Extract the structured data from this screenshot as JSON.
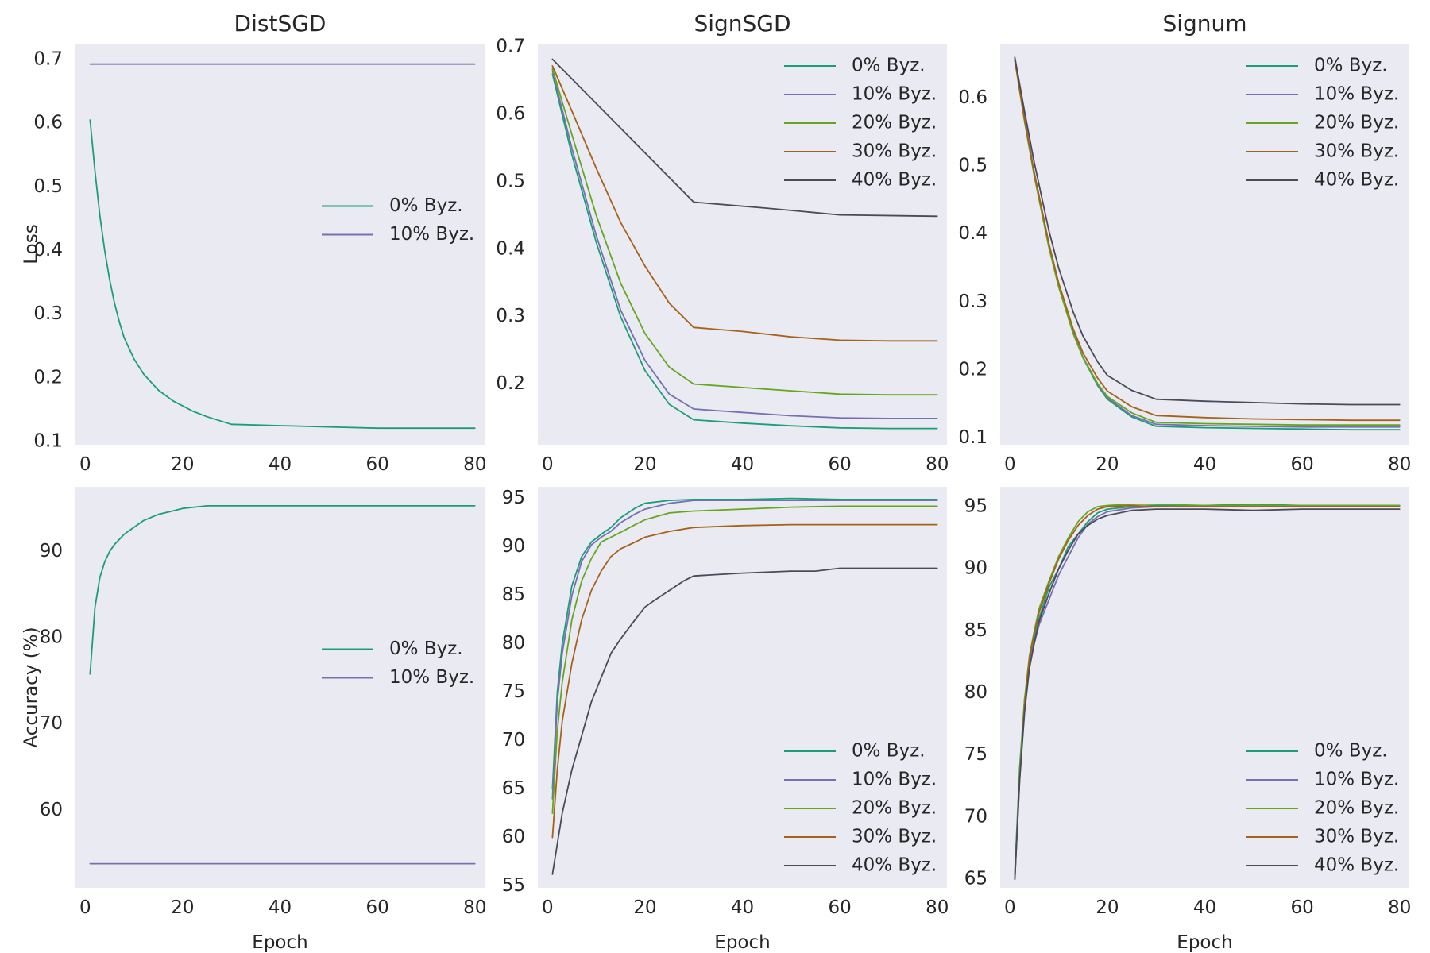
{
  "chart_data": [
    {
      "id": "distsgd-loss",
      "type": "line",
      "title": "DistSGD",
      "xlabel": "",
      "ylabel": "Loss",
      "xlim": [
        -2,
        82
      ],
      "ylim": [
        0.095,
        0.725
      ],
      "xticks": [
        0,
        20,
        40,
        60,
        80
      ],
      "yticks": [
        0.1,
        0.2,
        0.3,
        0.4,
        0.5,
        0.6,
        0.7
      ],
      "ytick_labels": [
        "0.1",
        "0.2",
        "0.3",
        "0.4",
        "0.5",
        "0.6",
        "0.7"
      ],
      "legend": "center-right",
      "series": [
        {
          "name": "0%  Byz.",
          "color": "#1b9e77",
          "x": [
            1,
            2,
            3,
            4,
            5,
            6,
            7,
            8,
            10,
            12,
            15,
            18,
            20,
            22,
            25,
            30,
            40,
            50,
            60,
            70,
            80
          ],
          "values": [
            0.605,
            0.525,
            0.455,
            0.4,
            0.355,
            0.318,
            0.288,
            0.263,
            0.23,
            0.206,
            0.181,
            0.164,
            0.156,
            0.148,
            0.139,
            0.127,
            0.125,
            0.123,
            0.121,
            0.121,
            0.121
          ]
        },
        {
          "name": "10%  Byz.",
          "color": "#7570b3",
          "x": [
            1,
            80
          ],
          "values": [
            0.693,
            0.693
          ]
        }
      ]
    },
    {
      "id": "signsgd-loss",
      "type": "line",
      "title": "SignSGD",
      "xlabel": "",
      "ylabel": "",
      "xlim": [
        -2,
        82
      ],
      "ylim": [
        0.11,
        0.705
      ],
      "xticks": [
        0,
        20,
        40,
        60,
        80
      ],
      "yticks": [
        0.2,
        0.3,
        0.4,
        0.5,
        0.6,
        0.7
      ],
      "ytick_labels": [
        "0.2",
        "0.3",
        "0.4",
        "0.5",
        "0.6",
        "0.7"
      ],
      "legend": "top-right",
      "series": [
        {
          "name": "0%  Byz.",
          "color": "#1b9e77",
          "x": [
            1,
            5,
            10,
            15,
            20,
            25,
            30,
            40,
            50,
            60,
            70,
            80
          ],
          "values": [
            0.66,
            0.54,
            0.41,
            0.3,
            0.22,
            0.17,
            0.147,
            0.142,
            0.138,
            0.135,
            0.134,
            0.134
          ]
        },
        {
          "name": "10%  Byz.",
          "color": "#7570b3",
          "x": [
            1,
            5,
            10,
            15,
            20,
            25,
            30,
            40,
            50,
            60,
            70,
            80
          ],
          "values": [
            0.665,
            0.55,
            0.42,
            0.31,
            0.235,
            0.185,
            0.163,
            0.158,
            0.153,
            0.15,
            0.149,
            0.149
          ]
        },
        {
          "name": "20%  Byz.",
          "color": "#66a61e",
          "x": [
            1,
            5,
            10,
            15,
            20,
            25,
            30,
            40,
            50,
            60,
            70,
            80
          ],
          "values": [
            0.668,
            0.57,
            0.45,
            0.35,
            0.275,
            0.225,
            0.2,
            0.195,
            0.19,
            0.185,
            0.184,
            0.184
          ]
        },
        {
          "name": "30%  Byz.",
          "color": "#a6611a",
          "x": [
            1,
            5,
            10,
            15,
            20,
            25,
            30,
            40,
            50,
            60,
            70,
            80
          ],
          "values": [
            0.672,
            0.605,
            0.52,
            0.44,
            0.375,
            0.32,
            0.284,
            0.278,
            0.27,
            0.265,
            0.264,
            0.264
          ]
        },
        {
          "name": "40%  Byz.",
          "color": "#4a4a5a",
          "x": [
            1,
            30,
            45,
            60,
            80
          ],
          "values": [
            0.682,
            0.47,
            0.461,
            0.451,
            0.449
          ]
        }
      ]
    },
    {
      "id": "signum-loss",
      "type": "line",
      "title": "Signum",
      "xlabel": "",
      "ylabel": "",
      "xlim": [
        -2,
        82
      ],
      "ylim": [
        0.09,
        0.68
      ],
      "xticks": [
        0,
        20,
        40,
        60,
        80
      ],
      "yticks": [
        0.1,
        0.2,
        0.3,
        0.4,
        0.5,
        0.6
      ],
      "ytick_labels": [
        "0.1",
        "0.2",
        "0.3",
        "0.4",
        "0.5",
        "0.6"
      ],
      "legend": "top-right",
      "series": [
        {
          "name": "0%  Byz.",
          "color": "#1b9e77",
          "x": [
            1,
            3,
            5,
            8,
            10,
            13,
            15,
            18,
            20,
            25,
            30,
            40,
            50,
            60,
            70,
            80
          ],
          "values": [
            0.658,
            0.57,
            0.49,
            0.385,
            0.325,
            0.255,
            0.218,
            0.177,
            0.157,
            0.131,
            0.117,
            0.115,
            0.114,
            0.113,
            0.112,
            0.112
          ]
        },
        {
          "name": "10%  Byz.",
          "color": "#7570b3",
          "x": [
            1,
            3,
            5,
            8,
            10,
            13,
            15,
            18,
            20,
            25,
            30,
            40,
            50,
            60,
            70,
            80
          ],
          "values": [
            0.658,
            0.57,
            0.49,
            0.385,
            0.326,
            0.256,
            0.219,
            0.179,
            0.159,
            0.133,
            0.12,
            0.118,
            0.117,
            0.116,
            0.116,
            0.116
          ]
        },
        {
          "name": "20%  Byz.",
          "color": "#66a61e",
          "x": [
            1,
            3,
            5,
            8,
            10,
            13,
            15,
            18,
            20,
            25,
            30,
            40,
            50,
            60,
            70,
            80
          ],
          "values": [
            0.655,
            0.565,
            0.485,
            0.38,
            0.322,
            0.253,
            0.218,
            0.18,
            0.161,
            0.137,
            0.123,
            0.121,
            0.12,
            0.119,
            0.119,
            0.119
          ]
        },
        {
          "name": "30%  Byz.",
          "color": "#a6611a",
          "x": [
            1,
            3,
            5,
            8,
            10,
            13,
            15,
            18,
            20,
            25,
            30,
            40,
            50,
            60,
            70,
            80
          ],
          "values": [
            0.656,
            0.568,
            0.489,
            0.386,
            0.328,
            0.26,
            0.225,
            0.188,
            0.169,
            0.146,
            0.133,
            0.13,
            0.128,
            0.127,
            0.126,
            0.126
          ]
        },
        {
          "name": "40%  Byz.",
          "color": "#4a4a5a",
          "x": [
            1,
            3,
            5,
            8,
            10,
            13,
            15,
            18,
            20,
            25,
            30,
            40,
            50,
            60,
            70,
            80
          ],
          "values": [
            0.66,
            0.58,
            0.505,
            0.405,
            0.35,
            0.285,
            0.25,
            0.212,
            0.192,
            0.17,
            0.157,
            0.154,
            0.152,
            0.15,
            0.149,
            0.149
          ]
        }
      ]
    },
    {
      "id": "distsgd-accuracy",
      "type": "line",
      "title": "",
      "xlabel": "Epoch",
      "ylabel": "Accuracy (%)",
      "xlim": [
        -2,
        82
      ],
      "ylim": [
        51,
        97.5
      ],
      "xticks": [
        0,
        20,
        40,
        60,
        80
      ],
      "yticks": [
        60,
        70,
        80,
        90
      ],
      "ytick_labels": [
        "60",
        "70",
        "80",
        "90"
      ],
      "legend": "center-right",
      "series": [
        {
          "name": "0%  Byz.",
          "color": "#1b9e77",
          "x": [
            1,
            2,
            3,
            4,
            5,
            6,
            8,
            10,
            12,
            15,
            18,
            20,
            25,
            30,
            40,
            50,
            60,
            70,
            80
          ],
          "values": [
            75.8,
            83.5,
            87.0,
            88.8,
            90.0,
            90.8,
            92.0,
            92.8,
            93.6,
            94.3,
            94.7,
            95.0,
            95.3,
            95.3,
            95.3,
            95.3,
            95.3,
            95.3,
            95.3
          ]
        },
        {
          "name": "10%  Byz.",
          "color": "#7570b3",
          "x": [
            1,
            80
          ],
          "values": [
            53.8,
            53.8
          ]
        }
      ]
    },
    {
      "id": "signsgd-accuracy",
      "type": "line",
      "title": "",
      "xlabel": "Epoch",
      "ylabel": "",
      "xlim": [
        -2,
        82
      ],
      "ylim": [
        54.8,
        96.2
      ],
      "xticks": [
        0,
        20,
        40,
        60,
        80
      ],
      "yticks": [
        55,
        60,
        65,
        70,
        75,
        80,
        85,
        90,
        95
      ],
      "ytick_labels": [
        "55",
        "60",
        "65",
        "70",
        "75",
        "80",
        "85",
        "90",
        "95"
      ],
      "legend": "bottom-right",
      "series": [
        {
          "name": "0%  Byz.",
          "color": "#1b9e77",
          "x": [
            1,
            2,
            3,
            5,
            7,
            9,
            11,
            13,
            15,
            18,
            20,
            25,
            30,
            40,
            50,
            60,
            70,
            80
          ],
          "values": [
            65.0,
            75.0,
            80.0,
            86.0,
            89.0,
            90.5,
            91.3,
            92.0,
            93.0,
            94.0,
            94.5,
            94.8,
            94.9,
            94.9,
            95.0,
            94.9,
            94.9,
            94.9
          ]
        },
        {
          "name": "10%  Byz.",
          "color": "#7570b3",
          "x": [
            1,
            2,
            3,
            5,
            7,
            9,
            11,
            13,
            15,
            18,
            20,
            25,
            30,
            40,
            50,
            60,
            70,
            80
          ],
          "values": [
            64.0,
            74.0,
            79.0,
            85.0,
            88.5,
            90.2,
            91.0,
            91.6,
            92.5,
            93.4,
            93.9,
            94.5,
            94.8,
            94.8,
            94.8,
            94.8,
            94.8,
            94.8
          ]
        },
        {
          "name": "20%  Byz.",
          "color": "#66a61e",
          "x": [
            1,
            2,
            3,
            5,
            7,
            9,
            11,
            13,
            15,
            18,
            20,
            25,
            30,
            40,
            50,
            60,
            70,
            80
          ],
          "values": [
            62.5,
            71.0,
            76.0,
            82.5,
            86.5,
            88.8,
            90.5,
            91.0,
            91.5,
            92.3,
            92.8,
            93.5,
            93.7,
            93.9,
            94.1,
            94.2,
            94.2,
            94.2
          ]
        },
        {
          "name": "30%  Byz.",
          "color": "#a6611a",
          "x": [
            1,
            2,
            3,
            5,
            7,
            9,
            11,
            13,
            15,
            18,
            20,
            25,
            30,
            40,
            50,
            60,
            70,
            80
          ],
          "values": [
            60.0,
            67.0,
            72.0,
            78.0,
            82.5,
            85.5,
            87.5,
            89.0,
            89.8,
            90.5,
            91.0,
            91.6,
            92.0,
            92.2,
            92.3,
            92.3,
            92.3,
            92.3
          ]
        },
        {
          "name": "40%  Byz.",
          "color": "#4a4a5a",
          "x": [
            1,
            3,
            5,
            7,
            9,
            11,
            13,
            15,
            18,
            20,
            22,
            25,
            28,
            30,
            40,
            50,
            55,
            60,
            70,
            80
          ],
          "values": [
            56.2,
            62.5,
            67.0,
            70.5,
            74.0,
            76.5,
            79.0,
            80.5,
            82.5,
            83.8,
            84.5,
            85.5,
            86.5,
            87.0,
            87.3,
            87.5,
            87.5,
            87.8,
            87.8,
            87.8
          ]
        }
      ]
    },
    {
      "id": "signum-accuracy",
      "type": "line",
      "title": "",
      "xlabel": "Epoch",
      "ylabel": "",
      "xlim": [
        -2,
        82
      ],
      "ylim": [
        64.3,
        96.6
      ],
      "xticks": [
        0,
        20,
        40,
        60,
        80
      ],
      "yticks": [
        65,
        70,
        75,
        80,
        85,
        90,
        95
      ],
      "ytick_labels": [
        "65",
        "70",
        "75",
        "80",
        "85",
        "90",
        "95"
      ],
      "legend": "bottom-right",
      "series": [
        {
          "name": "0%  Byz.",
          "color": "#1b9e77",
          "x": [
            1,
            2,
            3,
            4,
            5,
            6,
            8,
            10,
            12,
            14,
            16,
            18,
            20,
            25,
            30,
            40,
            50,
            60,
            70,
            80
          ],
          "values": [
            65.5,
            74.0,
            79.5,
            82.5,
            84.5,
            86.0,
            88.5,
            90.0,
            91.8,
            92.8,
            93.8,
            94.5,
            94.8,
            95.0,
            95.1,
            95.1,
            95.2,
            95.1,
            95.1,
            95.1
          ]
        },
        {
          "name": "10%  Byz.",
          "color": "#7570b3",
          "x": [
            1,
            2,
            3,
            4,
            5,
            6,
            8,
            10,
            12,
            14,
            16,
            18,
            20,
            25,
            30,
            40,
            50,
            60,
            70,
            80
          ],
          "values": [
            65.3,
            73.5,
            79.0,
            82.5,
            84.0,
            85.5,
            87.5,
            89.5,
            91.0,
            92.5,
            93.6,
            94.2,
            94.6,
            94.9,
            95.0,
            95.0,
            95.0,
            95.0,
            95.0,
            95.0
          ]
        },
        {
          "name": "20%  Byz.",
          "color": "#66a61e",
          "x": [
            1,
            2,
            3,
            4,
            5,
            6,
            8,
            10,
            12,
            14,
            16,
            18,
            20,
            25,
            30,
            40,
            50,
            60,
            70,
            80
          ],
          "values": [
            65.0,
            73.5,
            79.5,
            83.0,
            85.0,
            86.8,
            89.0,
            91.0,
            92.5,
            93.8,
            94.6,
            95.0,
            95.1,
            95.2,
            95.2,
            95.1,
            95.1,
            95.1,
            95.1,
            95.1
          ]
        },
        {
          "name": "30%  Byz.",
          "color": "#a6611a",
          "x": [
            1,
            2,
            3,
            4,
            5,
            6,
            8,
            10,
            12,
            14,
            16,
            18,
            20,
            25,
            30,
            40,
            50,
            60,
            70,
            80
          ],
          "values": [
            65.0,
            73.0,
            79.0,
            82.8,
            84.8,
            86.5,
            88.8,
            90.8,
            92.3,
            93.5,
            94.3,
            94.8,
            95.0,
            95.1,
            95.0,
            95.0,
            95.0,
            95.0,
            95.0,
            95.0
          ]
        },
        {
          "name": "40%  Byz.",
          "color": "#4a4a5a",
          "x": [
            1,
            2,
            3,
            4,
            5,
            6,
            8,
            10,
            12,
            14,
            16,
            18,
            20,
            25,
            30,
            40,
            50,
            60,
            70,
            80
          ],
          "values": [
            65.0,
            73.0,
            78.5,
            82.0,
            84.0,
            85.8,
            88.0,
            90.0,
            91.5,
            92.8,
            93.5,
            94.0,
            94.3,
            94.7,
            94.8,
            94.8,
            94.7,
            94.8,
            94.8,
            94.8
          ]
        }
      ]
    }
  ]
}
